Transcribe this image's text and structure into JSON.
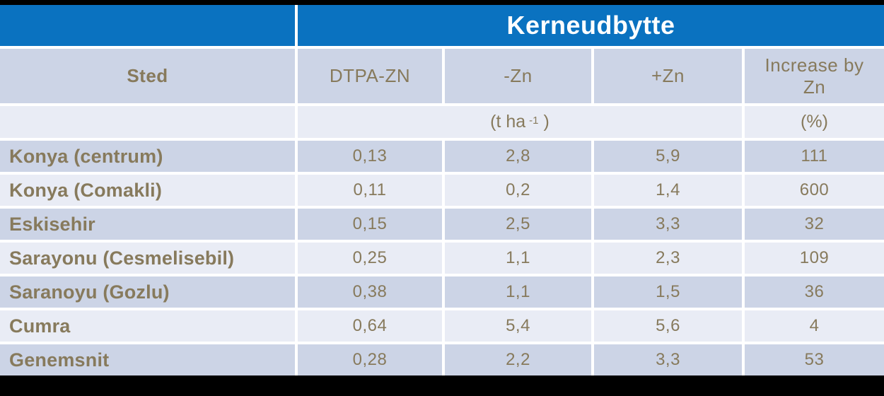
{
  "colors": {
    "accent_blue": "#0a72c0",
    "row_dark": "#ccd4e6",
    "row_light": "#e9ecf5",
    "text_brown": "#877a5c",
    "title_text": "#ffffff",
    "background": "#000000"
  },
  "unit_row": {
    "prefix": "(t ha",
    "superscript": "-1",
    "suffix": ")",
    "percent": "(%)"
  },
  "chart_data": {
    "type": "table",
    "title": "Kerneudbytte",
    "columns": [
      "Sted",
      "DTPA-ZN",
      "-Zn",
      "+Zn",
      "Increase by Zn"
    ],
    "units": {
      "yield_columns": "(t ha -1 )",
      "increase_column": "(%)"
    },
    "rows": [
      [
        "Konya (centrum)",
        "0,13",
        "2,8",
        "5,9",
        "111"
      ],
      [
        "Konya (Comakli)",
        "0,11",
        "0,2",
        "1,4",
        "600"
      ],
      [
        "Eskisehir",
        "0,15",
        "2,5",
        "3,3",
        "32"
      ],
      [
        "Sarayonu (Cesmelisebil)",
        "0,25",
        "1,1",
        "2,3",
        "109"
      ],
      [
        "Saranoyu (Gozlu)",
        "0,38",
        "1,1",
        "1,5",
        "36"
      ],
      [
        "Cumra",
        "0,64",
        "5,4",
        "5,6",
        "4"
      ],
      [
        "Genemsnit",
        "0,28",
        "2,2",
        "3,3",
        "53"
      ]
    ]
  }
}
